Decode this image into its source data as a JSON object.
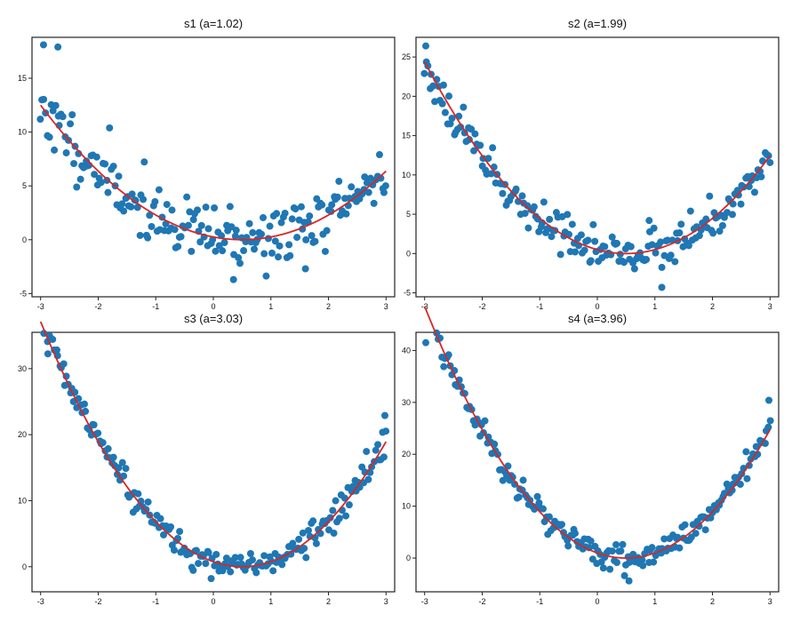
{
  "chart_data": [
    {
      "type": "scatter",
      "title": "s1  (a=1.02)",
      "a": 1.02,
      "xlim": [
        -3.15,
        3.15
      ],
      "ylim": [
        -5.3,
        18.8
      ],
      "xticks": [
        -3,
        -2,
        -1,
        0,
        1,
        2,
        3
      ],
      "yticks": [
        -5,
        0,
        5,
        10,
        15
      ],
      "noise": 1.4,
      "seed": 11,
      "point_color": "#1f77b4",
      "fit_color": "#d62728",
      "fit_model": "y = a*(x - 0.5)^2",
      "outliers": [
        {
          "x": -2.95,
          "y": 18.1
        },
        {
          "x": -2.7,
          "y": 17.9
        },
        {
          "x": 0.35,
          "y": -3.7
        },
        {
          "x": 1.6,
          "y": -2.7
        }
      ]
    },
    {
      "type": "scatter",
      "title": "s2  (a=1.99)",
      "a": 1.99,
      "xlim": [
        -3.15,
        3.15
      ],
      "ylim": [
        -5.5,
        27.5
      ],
      "xticks": [
        -3,
        -2,
        -1,
        0,
        1,
        2,
        3
      ],
      "yticks": [
        -5,
        0,
        5,
        10,
        15,
        20,
        25
      ],
      "noise": 1.2,
      "seed": 23,
      "point_color": "#1f77b4",
      "fit_color": "#d62728",
      "fit_model": "y = a*(x - 0.5)^2",
      "outliers": [
        {
          "x": -2.98,
          "y": 26.4
        },
        {
          "x": 1.12,
          "y": -4.3
        },
        {
          "x": 0.9,
          "y": 4.2
        }
      ]
    },
    {
      "type": "scatter",
      "title": "s3  (a=3.03)",
      "a": 3.03,
      "xlim": [
        -3.15,
        3.15
      ],
      "ylim": [
        -3.8,
        35.5
      ],
      "xticks": [
        -3,
        -2,
        -1,
        0,
        1,
        2,
        3
      ],
      "yticks": [
        0,
        10,
        20,
        30
      ],
      "noise": 1.1,
      "seed": 37,
      "point_color": "#1f77b4",
      "fit_color": "#d62728",
      "fit_model": "y = a*(x - 0.5)^2",
      "outliers": [
        {
          "x": -2.88,
          "y": 34.1
        },
        {
          "x": 2.98,
          "y": 22.9
        }
      ]
    },
    {
      "type": "scatter",
      "title": "s4  (a=3.96)",
      "a": 3.96,
      "xlim": [
        -3.15,
        3.15
      ],
      "ylim": [
        -6.5,
        43.5
      ],
      "xticks": [
        -3,
        -2,
        -1,
        0,
        1,
        2,
        3
      ],
      "yticks": [
        0,
        10,
        20,
        30,
        40
      ],
      "noise": 1.2,
      "seed": 53,
      "point_color": "#1f77b4",
      "fit_color": "#d62728",
      "fit_model": "y = a*(x - 0.5)^2",
      "outliers": [
        {
          "x": -2.98,
          "y": 41.5
        },
        {
          "x": 2.98,
          "y": 30.4
        },
        {
          "x": 0.55,
          "y": -4.4
        }
      ]
    }
  ]
}
